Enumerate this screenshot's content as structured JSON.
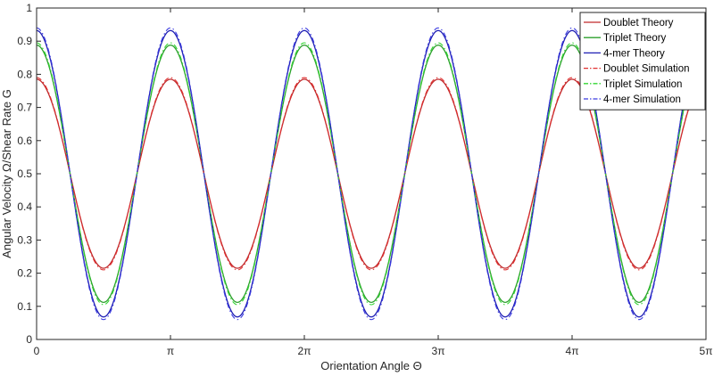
{
  "chart_data": {
    "type": "line",
    "title": "",
    "xlabel": "Orientation Angle Θ",
    "ylabel": "Angular Velocity Ω/Shear Rate G",
    "xlim": [
      0,
      5
    ],
    "x_unit": "π",
    "ylim": [
      0,
      1
    ],
    "x_ticks": [
      {
        "value": 0,
        "label": "0"
      },
      {
        "value": 1,
        "label": "π"
      },
      {
        "value": 2,
        "label": "2π"
      },
      {
        "value": 3,
        "label": "3π"
      },
      {
        "value": 4,
        "label": "4π"
      },
      {
        "value": 5,
        "label": "5π"
      }
    ],
    "y_ticks": [
      {
        "value": 0,
        "label": "0"
      },
      {
        "value": 0.1,
        "label": "0.1"
      },
      {
        "value": 0.2,
        "label": "0.2"
      },
      {
        "value": 0.3,
        "label": "0.3"
      },
      {
        "value": 0.4,
        "label": "0.4"
      },
      {
        "value": 0.5,
        "label": "0.5"
      },
      {
        "value": 0.6,
        "label": "0.6"
      },
      {
        "value": 0.7,
        "label": "0.7"
      },
      {
        "value": 0.8,
        "label": "0.8"
      },
      {
        "value": 0.9,
        "label": "0.9"
      },
      {
        "value": 1,
        "label": "1"
      }
    ],
    "grid": false,
    "legend_position": "top-right",
    "series": [
      {
        "name": "Doublet Theory",
        "style": "solid",
        "color": "#c0292b",
        "x": [
          0,
          0.25,
          0.5,
          0.75,
          1,
          1.25,
          1.5,
          1.75,
          2,
          2.25,
          2.5,
          2.75,
          3,
          3.25,
          3.5,
          3.75,
          4,
          4.25,
          4.5,
          4.75,
          5
        ],
        "y": [
          0.785,
          0.5,
          0.215,
          0.5,
          0.785,
          0.5,
          0.215,
          0.5,
          0.785,
          0.5,
          0.215,
          0.5,
          0.785,
          0.5,
          0.215,
          0.5,
          0.785,
          0.5,
          0.215,
          0.5,
          0.785
        ]
      },
      {
        "name": "Triplet Theory",
        "style": "solid",
        "color": "#2ca02c",
        "x": [
          0,
          0.25,
          0.5,
          0.75,
          1,
          1.25,
          1.5,
          1.75,
          2,
          2.25,
          2.5,
          2.75,
          3,
          3.25,
          3.5,
          3.75,
          4,
          4.25,
          4.5,
          4.75,
          5
        ],
        "y": [
          0.888,
          0.5,
          0.112,
          0.5,
          0.888,
          0.5,
          0.112,
          0.5,
          0.888,
          0.5,
          0.112,
          0.5,
          0.888,
          0.5,
          0.112,
          0.5,
          0.888,
          0.5,
          0.112,
          0.5,
          0.888
        ]
      },
      {
        "name": "4-mer Theory",
        "style": "solid",
        "color": "#1f1fb4",
        "x": [
          0,
          0.25,
          0.5,
          0.75,
          1,
          1.25,
          1.5,
          1.75,
          2,
          2.25,
          2.5,
          2.75,
          3,
          3.25,
          3.5,
          3.75,
          4,
          4.25,
          4.5,
          4.75,
          5
        ],
        "y": [
          0.932,
          0.5,
          0.068,
          0.5,
          0.932,
          0.5,
          0.068,
          0.5,
          0.932,
          0.5,
          0.068,
          0.5,
          0.932,
          0.5,
          0.068,
          0.5,
          0.932,
          0.5,
          0.068,
          0.5,
          0.932
        ]
      },
      {
        "name": "Doublet Simulation",
        "style": "dashdot",
        "color": "#e03030",
        "x": [
          0,
          0.25,
          0.5,
          0.75,
          1,
          1.25,
          1.5,
          1.75,
          2,
          2.25,
          2.5,
          2.75,
          3,
          3.25,
          3.5,
          3.75,
          4,
          4.25,
          4.5,
          4.75,
          5
        ],
        "y": [
          0.79,
          0.5,
          0.21,
          0.5,
          0.79,
          0.5,
          0.21,
          0.5,
          0.79,
          0.5,
          0.21,
          0.5,
          0.79,
          0.5,
          0.21,
          0.5,
          0.79,
          0.5,
          0.21,
          0.5,
          0.79
        ]
      },
      {
        "name": "Triplet Simulation",
        "style": "dashdot",
        "color": "#33d633",
        "x": [
          0,
          0.25,
          0.5,
          0.75,
          1,
          1.25,
          1.5,
          1.75,
          2,
          2.25,
          2.5,
          2.75,
          3,
          3.25,
          3.5,
          3.75,
          4,
          4.25,
          4.5,
          4.75,
          5
        ],
        "y": [
          0.895,
          0.5,
          0.105,
          0.5,
          0.895,
          0.5,
          0.105,
          0.5,
          0.895,
          0.5,
          0.105,
          0.5,
          0.895,
          0.5,
          0.105,
          0.5,
          0.895,
          0.5,
          0.105,
          0.5,
          0.895
        ]
      },
      {
        "name": "4-mer Simulation",
        "style": "dashdot",
        "color": "#3a3ae0",
        "x": [
          0,
          0.25,
          0.5,
          0.75,
          1,
          1.25,
          1.5,
          1.75,
          2,
          2.25,
          2.5,
          2.75,
          3,
          3.25,
          3.5,
          3.75,
          4,
          4.25,
          4.5,
          4.75,
          5
        ],
        "y": [
          0.94,
          0.5,
          0.06,
          0.5,
          0.94,
          0.5,
          0.06,
          0.5,
          0.94,
          0.5,
          0.06,
          0.5,
          0.94,
          0.5,
          0.06,
          0.5,
          0.94,
          0.5,
          0.06,
          0.5,
          0.94
        ]
      }
    ]
  }
}
